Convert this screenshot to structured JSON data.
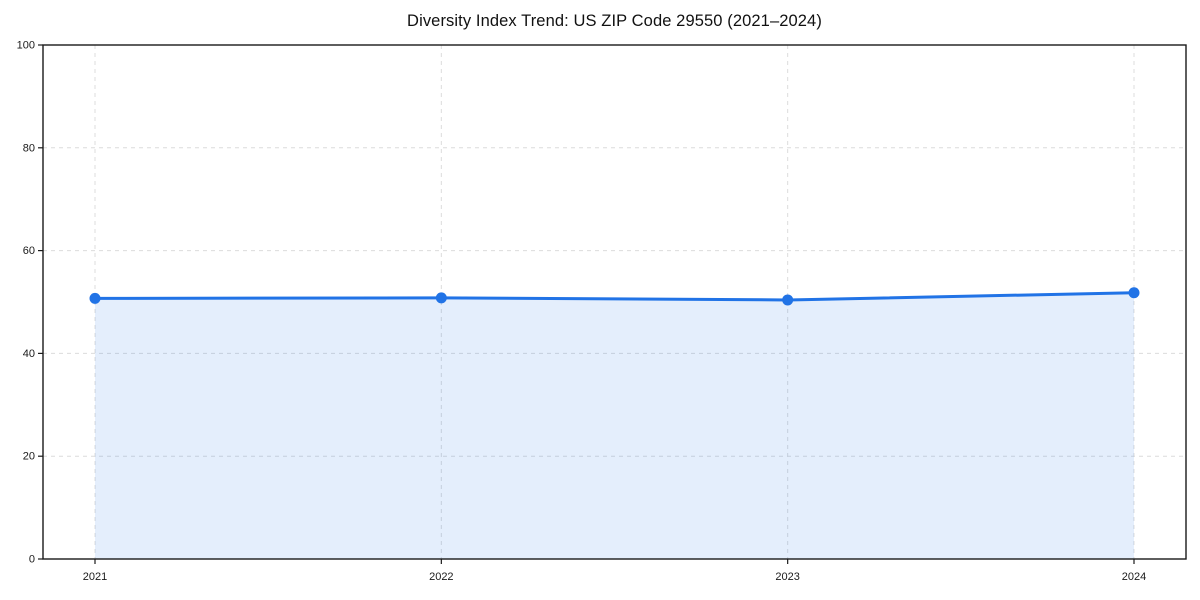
{
  "chart_data": {
    "type": "line",
    "title": "Diversity Index Trend: US ZIP Code 29550 (2021–2024)",
    "categories": [
      "2021",
      "2022",
      "2023",
      "2024"
    ],
    "series": [
      {
        "name": "Diversity Index",
        "values": [
          50.7,
          50.8,
          50.4,
          51.8
        ]
      }
    ],
    "xlabel": "",
    "ylabel": "",
    "ylim": [
      0,
      100
    ],
    "yticks": [
      0,
      20,
      40,
      60,
      80,
      100
    ],
    "grid": true,
    "grid_style": "dashed",
    "legend": false,
    "area_fill": true,
    "colors": {
      "line": "#2173e6",
      "marker": "#2173e6",
      "fill": "#2173e6",
      "fill_opacity": 0.12,
      "grid": "#dcdcdc",
      "axis": "#1a1a1a",
      "tick_text": "#1a1a1a",
      "background": "#ffffff"
    }
  }
}
